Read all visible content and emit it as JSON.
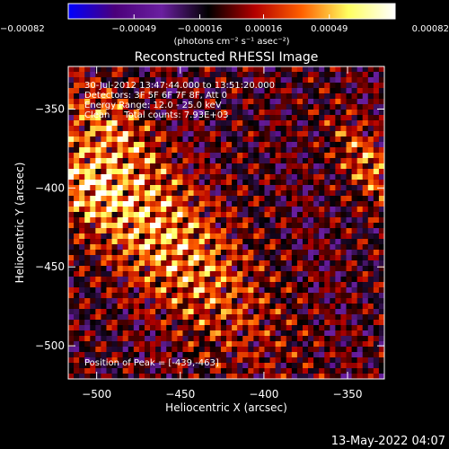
{
  "chart_data": {
    "type": "heatmap",
    "title": "Reconstructed RHESSI Image",
    "xlabel": "Heliocentric X (arcsec)",
    "ylabel": "Heliocentric Y (arcsec)",
    "xlim": [
      -517,
      -328
    ],
    "ylim": [
      -521,
      -323
    ],
    "xticks": [
      {
        "value": -500,
        "label": "−500"
      },
      {
        "value": -450,
        "label": "−450"
      },
      {
        "value": -400,
        "label": "−400"
      },
      {
        "value": -350,
        "label": "−350"
      }
    ],
    "yticks": [
      {
        "value": -350,
        "label": "−350"
      },
      {
        "value": -400,
        "label": "−400"
      },
      {
        "value": -450,
        "label": "−450"
      },
      {
        "value": -500,
        "label": "−500"
      }
    ],
    "colorbar": {
      "range": [
        -0.00082,
        0.00082
      ],
      "ticks": [
        {
          "value": -0.00082,
          "label": "−0.00082"
        },
        {
          "value": -0.00049,
          "label": "−0.00049"
        },
        {
          "value": -0.00016,
          "label": "−0.00016"
        },
        {
          "value": 0.00016,
          "label": "0.00016"
        },
        {
          "value": 0.00049,
          "label": "0.00049"
        },
        {
          "value": 0.00082,
          "label": "0.00082"
        }
      ],
      "unit_label": "(photons cm⁻² s⁻¹ asec⁻²)",
      "colormap": [
        "#0000ff",
        "#4b007a",
        "#6a1fa0",
        "#000000",
        "#b40000",
        "#ff6000",
        "#ffff60",
        "#ffffff"
      ]
    },
    "annotations": [
      "30-Jul-2012 13:47:44.000 to 13:51:20.000",
      "Detectors: 3F 5F 6F 7F 8F, Att 0",
      "Energy Range: 12.0 - 25.0 keV",
      "Clean     Total counts: 7.93E+03"
    ],
    "peak_label": "Position of Peak = [-439,-463]",
    "peak": {
      "x": -439,
      "y": -463
    },
    "sources": [
      {
        "x": -465,
        "y": -425,
        "intensity": 0.0008,
        "sigma_major": 60,
        "sigma_minor": 22,
        "angle_deg": -50
      },
      {
        "x": -505,
        "y": -400,
        "intensity": 0.0005,
        "sigma_major": 16,
        "sigma_minor": 12,
        "angle_deg": -50
      },
      {
        "x": -338,
        "y": -385,
        "intensity": 0.0006,
        "sigma_major": 22,
        "sigma_minor": 9,
        "angle_deg": -60
      },
      {
        "x": -490,
        "y": -360,
        "intensity": 0.0004,
        "sigma_major": 22,
        "sigma_minor": 10,
        "angle_deg": -50
      }
    ]
  },
  "footer": {
    "timestamp": "13-May-2022 04:07"
  }
}
